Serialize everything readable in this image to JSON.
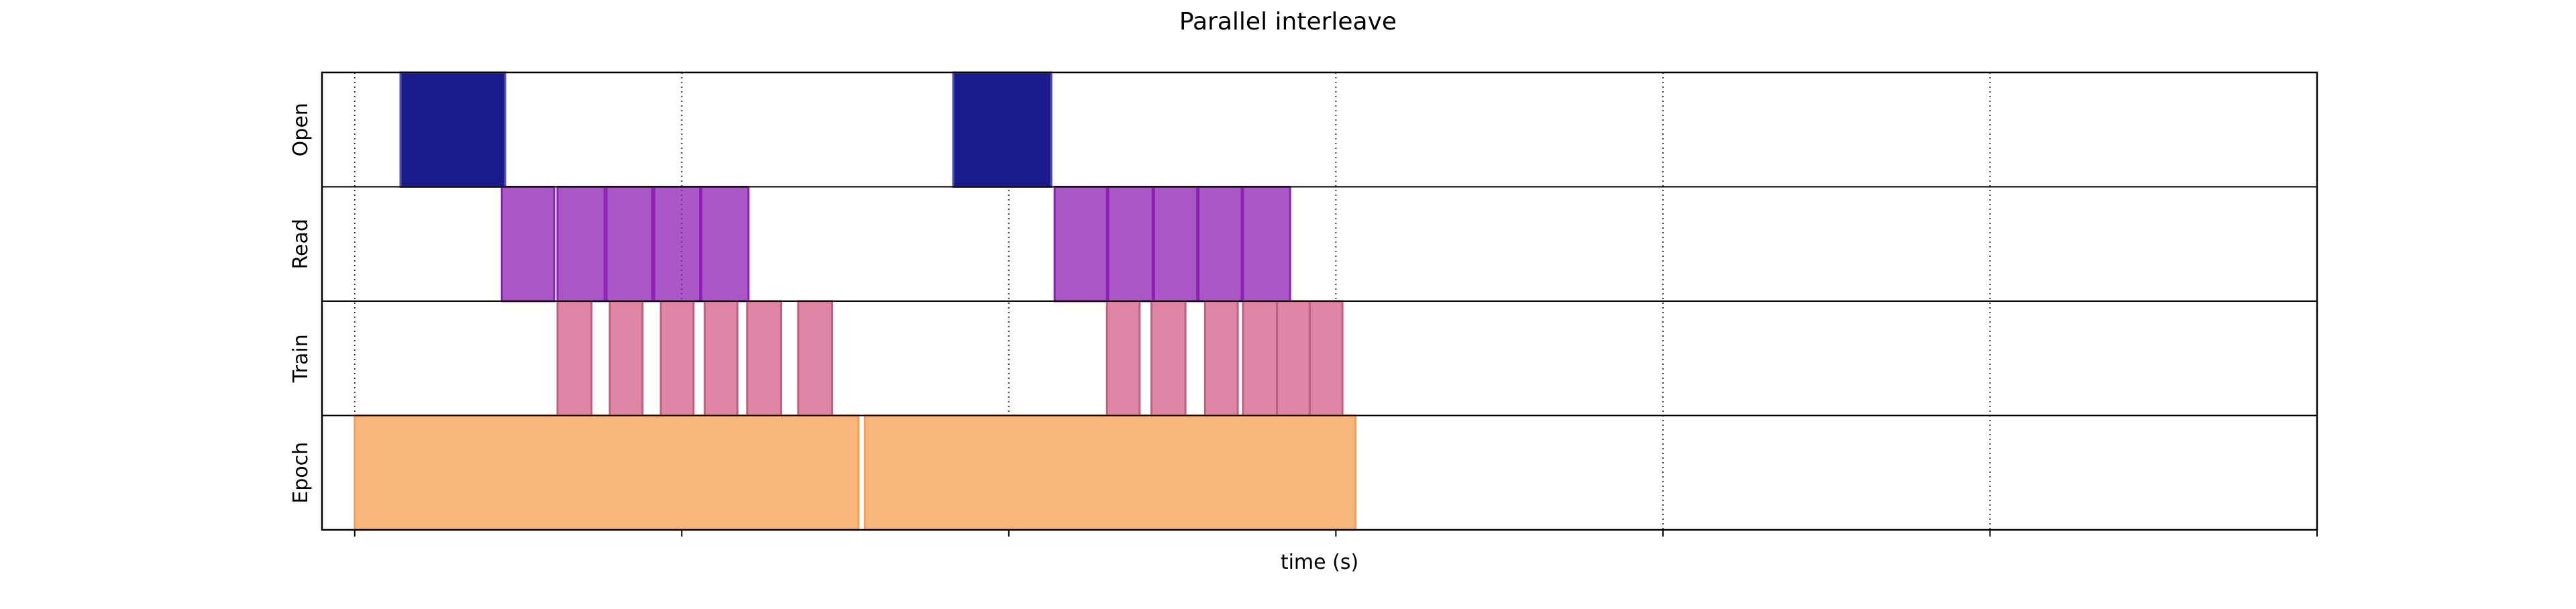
{
  "chart_data": {
    "type": "timeline",
    "title": "Parallel interleave",
    "xlabel": "time (s)",
    "ylabel": "",
    "grid": true,
    "x_tick_labels_shown": false,
    "lanes": [
      "Open",
      "Read",
      "Train",
      "Epoch"
    ],
    "xlim": [
      -0.05,
      3.0
    ],
    "x_ticks": [
      0,
      0.5,
      1.0,
      1.5,
      2.0,
      2.5,
      3.0
    ],
    "series": [
      {
        "name": "Open",
        "color": "#1a1a8c",
        "edge_color": "#5050b0",
        "intervals": [
          [
            0.07,
            0.23
          ],
          [
            0.915,
            1.065
          ]
        ]
      },
      {
        "name": "Read",
        "color": "#8e1fb5",
        "edge_color": "#8e1fb5",
        "intervals": [
          [
            0.225,
            0.305
          ],
          [
            0.31,
            0.382
          ],
          [
            0.385,
            0.455
          ],
          [
            0.458,
            0.528
          ],
          [
            0.53,
            0.602
          ],
          [
            1.07,
            1.15
          ],
          [
            1.152,
            1.22
          ],
          [
            1.222,
            1.288
          ],
          [
            1.29,
            1.356
          ],
          [
            1.358,
            1.43
          ]
        ]
      },
      {
        "name": "Train",
        "color": "#df85a5",
        "edge_color": "#c06080",
        "intervals": [
          [
            0.31,
            0.362
          ],
          [
            0.39,
            0.44
          ],
          [
            0.468,
            0.518
          ],
          [
            0.535,
            0.585
          ],
          [
            0.6,
            0.652
          ],
          [
            0.678,
            0.73
          ],
          [
            1.15,
            1.2
          ],
          [
            1.218,
            1.27
          ],
          [
            1.3,
            1.35
          ],
          [
            1.358,
            1.41
          ],
          [
            1.41,
            1.46
          ],
          [
            1.46,
            1.51
          ]
        ]
      },
      {
        "name": "Epoch",
        "color": "#f8b67d",
        "edge_color": "#f0a060",
        "intervals": [
          [
            0.0,
            0.77
          ],
          [
            0.78,
            1.53
          ]
        ]
      }
    ]
  }
}
